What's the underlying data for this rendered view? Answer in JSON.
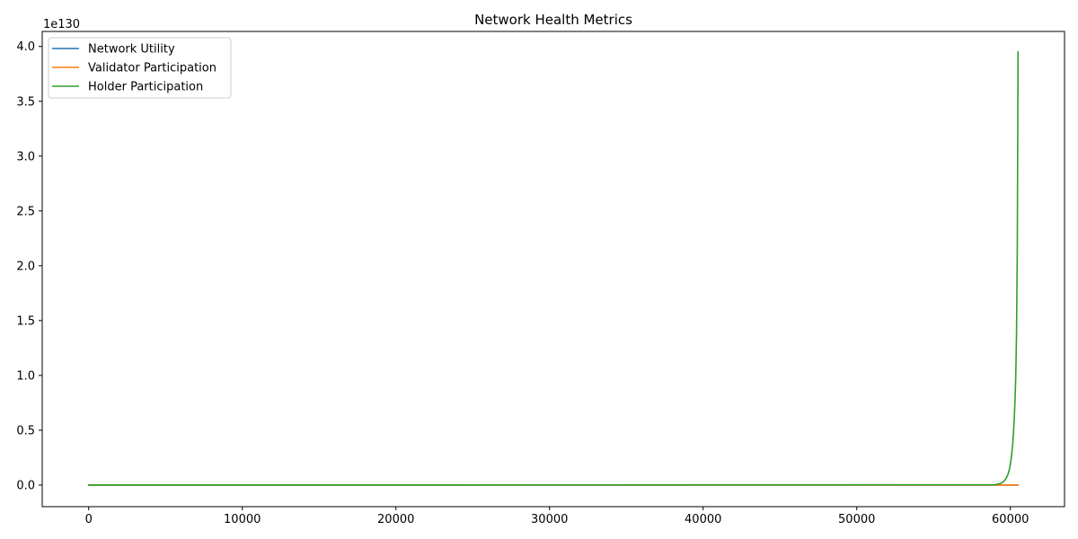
{
  "chart_data": {
    "type": "line",
    "title": "Network Health Metrics",
    "xlabel": "",
    "ylabel": "",
    "offset_text": "1e130",
    "xlim": [
      -3025,
      63525
    ],
    "ylim": [
      -0.197,
      4.137
    ],
    "x_ticks": [
      0,
      10000,
      20000,
      30000,
      40000,
      50000,
      60000
    ],
    "y_ticks": [
      0.0,
      0.5,
      1.0,
      1.5,
      2.0,
      2.5,
      3.0,
      3.5,
      4.0
    ],
    "grid": false,
    "legend_position": "upper left",
    "series": [
      {
        "name": "Network Utility",
        "color": "#1f77b4",
        "x": [
          0,
          60500
        ],
        "y": [
          0,
          0
        ]
      },
      {
        "name": "Validator Participation",
        "color": "#ff7f0e",
        "x": [
          0,
          60500
        ],
        "y": [
          0,
          0
        ]
      },
      {
        "name": "Holder Participation",
        "color": "#2ca02c",
        "x": [
          0,
          59000,
          59400,
          59600,
          59750,
          59850,
          59950,
          60000,
          60050,
          60100,
          60150,
          60200,
          60250,
          60300,
          60350,
          60400,
          60450,
          60500
        ],
        "y": [
          0,
          0.003,
          0.016,
          0.037,
          0.068,
          0.1,
          0.15,
          0.19,
          0.24,
          0.3,
          0.37,
          0.47,
          0.6,
          0.76,
          0.99,
          1.38,
          2.15,
          3.95
        ]
      }
    ]
  }
}
